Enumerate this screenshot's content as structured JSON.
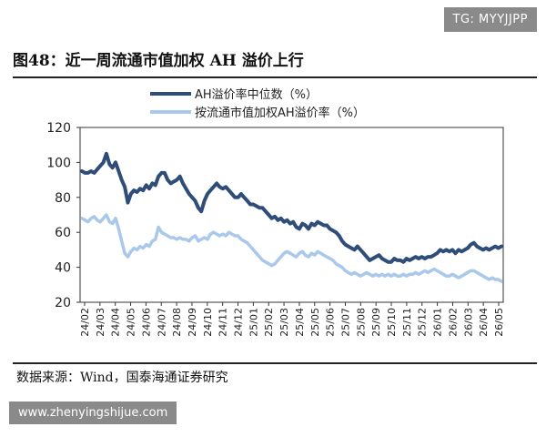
{
  "header": {
    "title": "图48：近一周流通市值加权 AH 溢价上行"
  },
  "footer": {
    "source": "数据来源：Wind，国泰海通证券研究"
  },
  "watermarks": {
    "top": "TG: MYYJJPP",
    "bottom": "www.zhenyingshijue.com"
  },
  "colors": {
    "series_dark": "#2e4d78",
    "series_light": "#a9c8ea"
  },
  "chart_data": {
    "type": "line",
    "title": "",
    "xlabel": "",
    "ylabel": "",
    "ylim": [
      20,
      120
    ],
    "yticks": [
      20,
      40,
      60,
      80,
      100,
      120
    ],
    "grid": false,
    "legend_position": "top",
    "x_ticks": [
      "24/02",
      "24/03",
      "24/04",
      "24/05",
      "24/06",
      "24/07",
      "24/08",
      "24/09",
      "24/10",
      "24/11",
      "24/12",
      "25/01",
      "25/02",
      "25/03",
      "25/04",
      "25/05",
      "25/06",
      "25/07",
      "25/08",
      "25/09",
      "25/10",
      "25/11",
      "25/12",
      "26/01",
      "26/02",
      "26/03",
      "26/04",
      "26/05"
    ],
    "series": [
      {
        "name": "AH溢价率中位数（%）",
        "color": "#2e4d78",
        "values": [
          95,
          94,
          94,
          95,
          94,
          96,
          98,
          100,
          105,
          99,
          97,
          100,
          95,
          90,
          86,
          77,
          82,
          84,
          83,
          85,
          84,
          87,
          85,
          88,
          87,
          92,
          94,
          94,
          90,
          88,
          89,
          90,
          92,
          88,
          85,
          82,
          80,
          78,
          74,
          72,
          78,
          82,
          84,
          86,
          88,
          86,
          85,
          86,
          84,
          82,
          80,
          80,
          82,
          80,
          78,
          76,
          76,
          75,
          74,
          74,
          72,
          70,
          68,
          69,
          67,
          68,
          66,
          67,
          65,
          66,
          63,
          62,
          65,
          64,
          62,
          65,
          64,
          66,
          65,
          64,
          64,
          62,
          61,
          60,
          58,
          55,
          53,
          52,
          51,
          50,
          52,
          50,
          48,
          46,
          44,
          45,
          46,
          47,
          45,
          44,
          43,
          43,
          45,
          44,
          44,
          43,
          45,
          44,
          45,
          46,
          45,
          46,
          45,
          46,
          46,
          47,
          48,
          50,
          49,
          50,
          49,
          50,
          48,
          50,
          49,
          50,
          51,
          53,
          54,
          52,
          51,
          50,
          51,
          50,
          51,
          52,
          51,
          52
        ]
      },
      {
        "name": "按流通市值加权AH溢价率（%）",
        "color": "#a9c8ea",
        "values": [
          68,
          67,
          66,
          68,
          69,
          67,
          66,
          68,
          70,
          66,
          65,
          68,
          62,
          55,
          48,
          46,
          49,
          51,
          50,
          52,
          51,
          53,
          52,
          55,
          56,
          63,
          60,
          59,
          58,
          57,
          57,
          56,
          57,
          56,
          56,
          55,
          57,
          58,
          55,
          56,
          57,
          56,
          59,
          60,
          59,
          58,
          59,
          58,
          60,
          59,
          58,
          58,
          56,
          55,
          54,
          52,
          50,
          48,
          46,
          44,
          43,
          42,
          41,
          42,
          44,
          46,
          48,
          49,
          48,
          47,
          46,
          48,
          49,
          47,
          46,
          48,
          47,
          49,
          48,
          47,
          46,
          45,
          44,
          42,
          41,
          40,
          38,
          37,
          36,
          37,
          36,
          35,
          36,
          37,
          36,
          35,
          36,
          35,
          36,
          35,
          36,
          35,
          36,
          35,
          35,
          36,
          35,
          36,
          36,
          37,
          36,
          37,
          38,
          37,
          38,
          39,
          38,
          37,
          36,
          35,
          35,
          36,
          35,
          34,
          35,
          36,
          37,
          38,
          38,
          37,
          36,
          35,
          34,
          33,
          34,
          33,
          33,
          32
        ]
      }
    ]
  }
}
